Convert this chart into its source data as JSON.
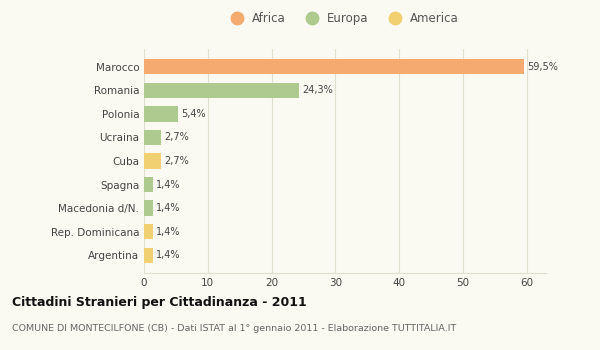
{
  "categories": [
    "Marocco",
    "Romania",
    "Polonia",
    "Ucraina",
    "Cuba",
    "Spagna",
    "Macedonia d/N.",
    "Rep. Dominicana",
    "Argentina"
  ],
  "values": [
    59.5,
    24.3,
    5.4,
    2.7,
    2.7,
    1.4,
    1.4,
    1.4,
    1.4
  ],
  "labels": [
    "59,5%",
    "24,3%",
    "5,4%",
    "2,7%",
    "2,7%",
    "1,4%",
    "1,4%",
    "1,4%",
    "1,4%"
  ],
  "colors": [
    "#F5AA6F",
    "#AECA8E",
    "#AECA8E",
    "#AECA8E",
    "#F0D070",
    "#AECA8E",
    "#AECA8E",
    "#F0D070",
    "#F0D070"
  ],
  "legend": [
    {
      "label": "Africa",
      "color": "#F5AA6F"
    },
    {
      "label": "Europa",
      "color": "#AECA8E"
    },
    {
      "label": "America",
      "color": "#F0D070"
    }
  ],
  "xlim": [
    0,
    63
  ],
  "xticks": [
    0,
    10,
    20,
    30,
    40,
    50,
    60
  ],
  "title": "Cittadini Stranieri per Cittadinanza - 2011",
  "subtitle": "COMUNE DI MONTECILFONE (CB) - Dati ISTAT al 1° gennaio 2011 - Elaborazione TUTTITALIA.IT",
  "background_color": "#fafaf2",
  "grid_color": "#e0e0d0",
  "bar_height": 0.65
}
